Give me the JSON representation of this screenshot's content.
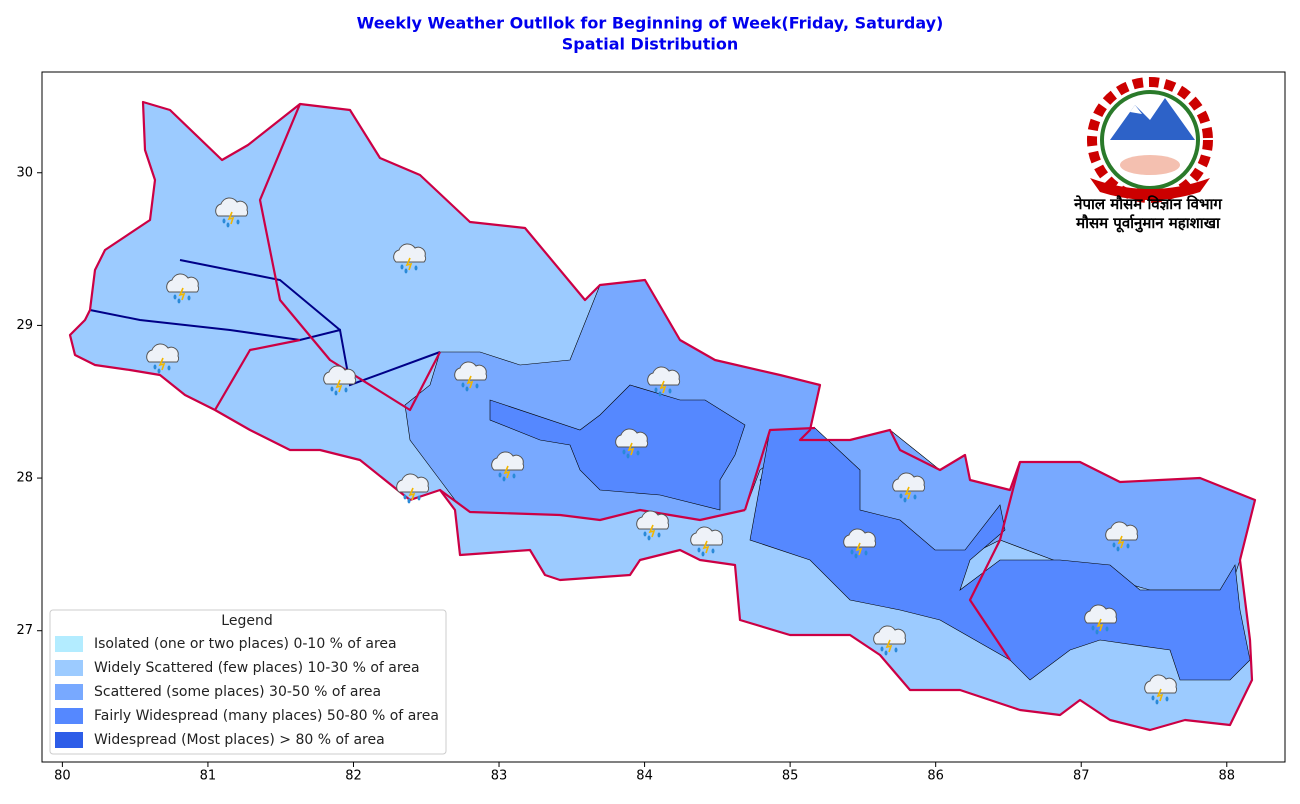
{
  "title": [
    "Weekly Weather Outllok for Beginning of Week(Friday, Saturday)",
    "Spatial Distribution"
  ],
  "map": {
    "xlim": [
      79.86,
      88.4
    ],
    "ylim": [
      26.14,
      30.66
    ],
    "xticks": [
      80,
      81,
      82,
      83,
      84,
      85,
      86,
      87,
      88
    ],
    "yticks": [
      27,
      28,
      29,
      30
    ]
  },
  "legend": {
    "title": "Legend",
    "items": [
      {
        "label": "Isolated (one or two places)  0-10 % of area",
        "color": "#b3ecff"
      },
      {
        "label": "Widely Scattered (few places)  10-30 % of area",
        "color": "#9ccbff"
      },
      {
        "label": "Scattered (some places)  30-50 % of area",
        "color": "#78a9ff"
      },
      {
        "label": "Fairly Widespread (many places)  50-80 % of area",
        "color": "#5588ff"
      },
      {
        "label": "Widespread (Most places) > 80 % of area",
        "color": "#2d5de8"
      }
    ]
  },
  "logo": {
    "line1": "नेपाल मौसम विज्ञान विभाग",
    "line2": "मौसम पूर्वानुमान महाशाखा"
  }
}
